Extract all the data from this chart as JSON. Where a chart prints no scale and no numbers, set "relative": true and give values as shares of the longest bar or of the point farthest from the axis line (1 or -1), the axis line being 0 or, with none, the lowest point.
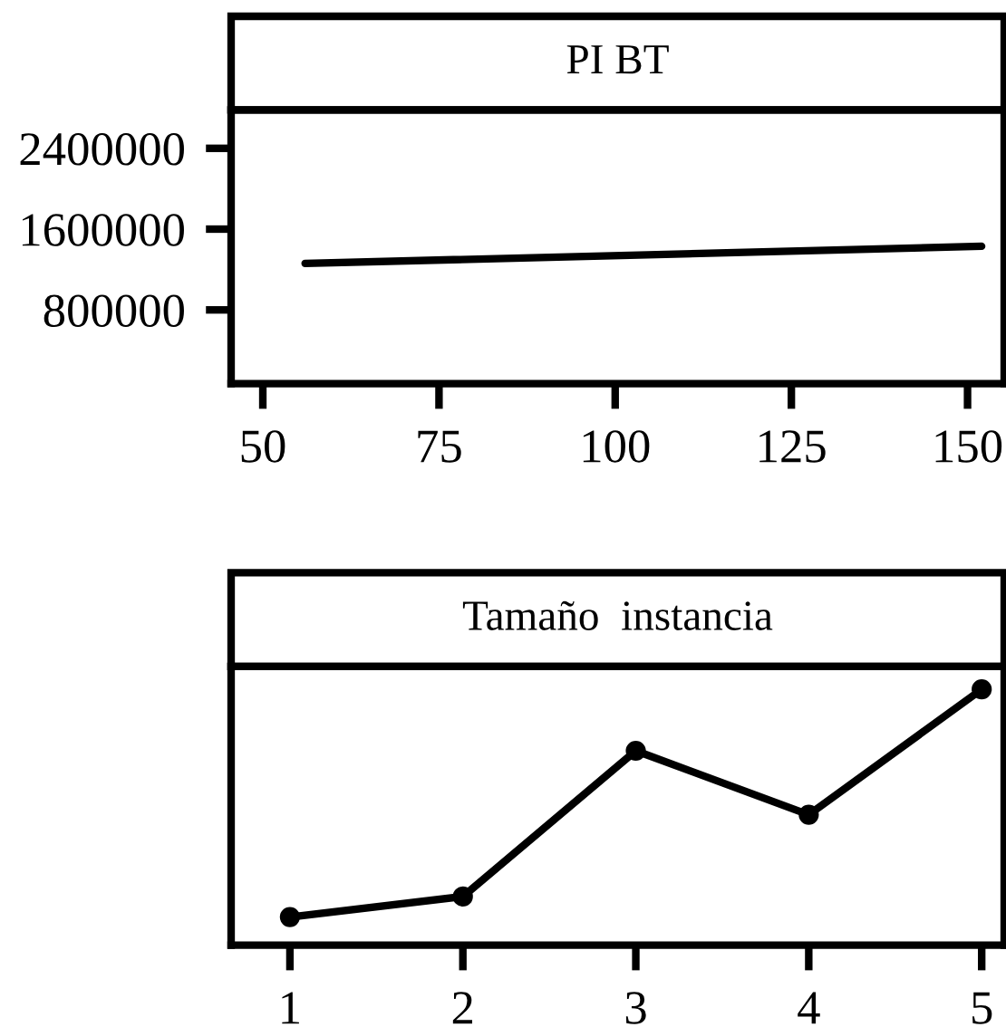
{
  "chart_data": [
    {
      "type": "line",
      "title": "PI BT",
      "x": [
        56,
        152
      ],
      "values": [
        1260000,
        1430000
      ],
      "color": "#000000",
      "xlim": [
        45.5,
        155.2
      ],
      "ylim": [
        70000,
        2780000
      ],
      "xticks": [
        50,
        75,
        100,
        125,
        150
      ],
      "yticks": [
        800000,
        1600000,
        2400000
      ],
      "grid": false,
      "legend": false,
      "marker": "none",
      "line_style": "solid"
    },
    {
      "type": "line",
      "title": "Tamaño  instancia",
      "x": [
        1,
        2,
        3,
        4,
        5
      ],
      "values": [
        0.11,
        0.19,
        0.76,
        0.51,
        1
      ],
      "relative": true,
      "color": "#000000",
      "xlim": [
        0.66,
        5.13
      ],
      "xticks": [
        1,
        2,
        3,
        4,
        5
      ],
      "grid": false,
      "legend": false,
      "marker": "circle",
      "line_style": "solid",
      "tick_labels": "x"
    }
  ]
}
